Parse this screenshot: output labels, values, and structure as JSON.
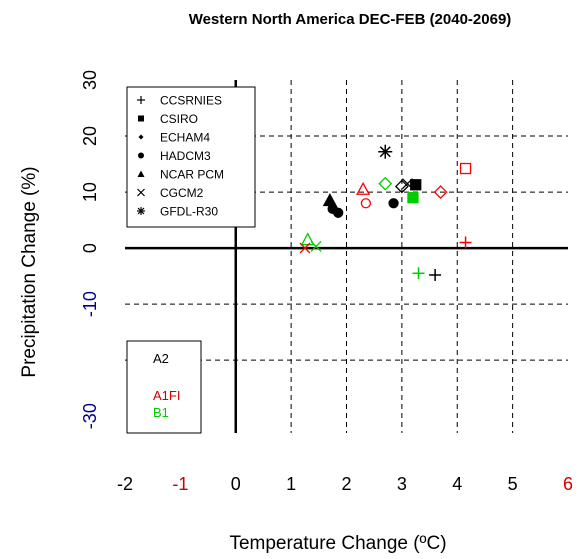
{
  "chart_data": {
    "type": "scatter",
    "title": "Western North America DEC-FEB (2040-2069)",
    "xlabel": "Temperature Change (ºC)",
    "ylabel": "Precipitation Change (%)",
    "xlim": [
      -2,
      6
    ],
    "ylim": [
      -33,
      30
    ],
    "x_ticks": [
      "-2",
      "-1",
      "0",
      "1",
      "2",
      "3",
      "4",
      "5",
      "6"
    ],
    "y_ticks": [
      "30",
      "20",
      "10",
      "0",
      "-10",
      "-30"
    ],
    "grid": true,
    "colors": {
      "A2": "#000000",
      "A1FI": "#ff0000",
      "B1": "#00cc00"
    },
    "models": [
      {
        "label": "CCSRNIES",
        "symbol": "plus"
      },
      {
        "label": "CSIRO",
        "symbol": "square"
      },
      {
        "label": "ECHAM4",
        "symbol": "diamond"
      },
      {
        "label": "HADCM3",
        "symbol": "circle"
      },
      {
        "label": "NCAR PCM",
        "symbol": "triangle"
      },
      {
        "label": "CGCM2",
        "symbol": "cross"
      },
      {
        "label": "GFDL-R30",
        "symbol": "asterisk"
      }
    ],
    "scenarios": [
      {
        "label": "A2",
        "color": "#000000"
      },
      {
        "label": "A1FI",
        "color": "#cc0000"
      },
      {
        "label": "B1",
        "color": "#00cc00"
      }
    ],
    "points": [
      {
        "model": "CCSRNIES",
        "scenario": "A2",
        "x": 3.6,
        "y": -4.8
      },
      {
        "model": "CCSRNIES",
        "scenario": "A1FI",
        "x": 4.15,
        "y": 1.0
      },
      {
        "model": "CCSRNIES",
        "scenario": "B1",
        "x": 3.3,
        "y": -4.5
      },
      {
        "model": "CSIRO",
        "scenario": "A2",
        "x": 3.25,
        "y": 11.3
      },
      {
        "model": "CSIRO",
        "scenario": "A1FI",
        "x": 4.15,
        "y": 14.2
      },
      {
        "model": "CSIRO",
        "scenario": "B1",
        "x": 3.2,
        "y": 9.0
      },
      {
        "model": "ECHAM4",
        "scenario": "A2",
        "x": 3.0,
        "y": 11.0
      },
      {
        "model": "ECHAM4",
        "scenario": "A1FI",
        "x": 3.7,
        "y": 10.0
      },
      {
        "model": "ECHAM4",
        "scenario": "B1",
        "x": 2.7,
        "y": 11.5
      },
      {
        "model": "HADCM3",
        "scenario": "A2",
        "x": 2.85,
        "y": 8.0
      },
      {
        "model": "HADCM3",
        "scenario": "A1FI",
        "x": 2.35,
        "y": 8.0
      },
      {
        "model": "HADCM3",
        "scenario": "A2",
        "x": 1.85,
        "y": 6.3
      },
      {
        "model": "HADCM3",
        "scenario": "A2",
        "x": 1.75,
        "y": 7.0
      },
      {
        "model": "NCAR PCM",
        "scenario": "A2",
        "x": 1.7,
        "y": 8.5
      },
      {
        "model": "NCAR PCM",
        "scenario": "A1FI",
        "x": 2.3,
        "y": 10.5
      },
      {
        "model": "NCAR PCM",
        "scenario": "B1",
        "x": 1.3,
        "y": 1.5
      },
      {
        "model": "CGCM2",
        "scenario": "A2",
        "x": 3.1,
        "y": 11.5
      },
      {
        "model": "CGCM2",
        "scenario": "B1",
        "x": 1.45,
        "y": 0.3
      },
      {
        "model": "CGCM2",
        "scenario": "A1FI",
        "x": 1.25,
        "y": 0.0
      },
      {
        "model": "GFDL-R30",
        "scenario": "A2",
        "x": 2.7,
        "y": 17.2
      }
    ]
  }
}
